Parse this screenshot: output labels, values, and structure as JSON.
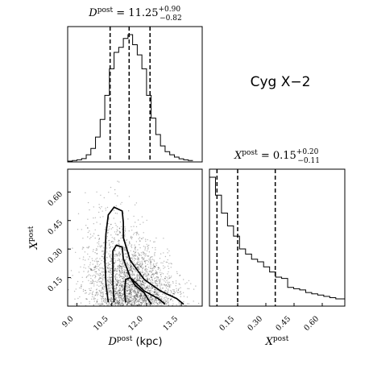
{
  "object_label": "Cyg X−2",
  "titles": {
    "d": {
      "main": "D",
      "sup": "post",
      "eq": " = 11.25",
      "plus": "+0.90",
      "minus": "−0.82"
    },
    "x": {
      "main": "X",
      "sup": "post",
      "eq": " = 0.15",
      "plus": "+0.20",
      "minus": "−0.11"
    }
  },
  "axis_labels": {
    "x_main": "D",
    "x_sup": "post",
    "x_unit": " (kpc)",
    "y_main": "X",
    "y_sup": "post",
    "xr_main": "X",
    "xr_sup": "post"
  },
  "chart_data": [
    {
      "type": "histogram",
      "panel": "D_posterior_marginal",
      "x_range": [
        8.6,
        14.4
      ],
      "quantiles": [
        10.43,
        11.25,
        12.15
      ],
      "bins": [
        8.6,
        8.8,
        9.0,
        9.2,
        9.4,
        9.6,
        9.8,
        10.0,
        10.2,
        10.4,
        10.6,
        10.8,
        11.0,
        11.2,
        11.4,
        11.6,
        11.8,
        12.0,
        12.2,
        12.4,
        12.6,
        12.8,
        13.0,
        13.2,
        13.4,
        13.6,
        13.8,
        14.0
      ],
      "counts": [
        0.0,
        0.005,
        0.01,
        0.02,
        0.05,
        0.1,
        0.19,
        0.33,
        0.52,
        0.73,
        0.86,
        0.9,
        0.97,
        1.0,
        0.92,
        0.84,
        0.73,
        0.52,
        0.34,
        0.21,
        0.12,
        0.075,
        0.05,
        0.032,
        0.018,
        0.01,
        0.005
      ]
    },
    {
      "type": "histogram",
      "panel": "X_posterior_marginal",
      "x_range": [
        0.0,
        0.72
      ],
      "x_ticks": [
        "0.15",
        "0.30",
        "0.45",
        "0.60"
      ],
      "quantiles": [
        0.04,
        0.15,
        0.35
      ],
      "bins": [
        0.0,
        0.032,
        0.064,
        0.096,
        0.128,
        0.16,
        0.192,
        0.224,
        0.256,
        0.288,
        0.32,
        0.352,
        0.384,
        0.416,
        0.448,
        0.48,
        0.512,
        0.544,
        0.576,
        0.608,
        0.64,
        0.672,
        0.72
      ],
      "counts": [
        1.0,
        0.86,
        0.72,
        0.62,
        0.54,
        0.44,
        0.4,
        0.36,
        0.34,
        0.3,
        0.26,
        0.22,
        0.21,
        0.14,
        0.13,
        0.12,
        0.1,
        0.09,
        0.08,
        0.07,
        0.06,
        0.05
      ]
    },
    {
      "type": "scatter",
      "panel": "joint_D_X",
      "x_label": "D post (kpc)",
      "y_label": "X post",
      "x_range": [
        8.6,
        14.4
      ],
      "y_range": [
        0.0,
        0.72
      ],
      "x_ticks": [
        "9.0",
        "10.5",
        "12.0",
        "13.5"
      ],
      "y_ticks": [
        "0.15",
        "0.30",
        "0.45",
        "0.60"
      ],
      "contours": [
        [
          [
            10.35,
            0.02
          ],
          [
            10.25,
            0.12
          ],
          [
            10.2,
            0.25
          ],
          [
            10.25,
            0.38
          ],
          [
            10.35,
            0.48
          ],
          [
            10.6,
            0.52
          ],
          [
            10.95,
            0.5
          ],
          [
            11.0,
            0.44
          ],
          [
            11.0,
            0.36
          ],
          [
            11.3,
            0.24
          ],
          [
            11.9,
            0.14
          ],
          [
            12.6,
            0.08
          ],
          [
            13.3,
            0.04
          ],
          [
            13.6,
            0.01
          ]
        ],
        [
          [
            10.6,
            0.02
          ],
          [
            10.55,
            0.12
          ],
          [
            10.55,
            0.22
          ],
          [
            10.55,
            0.29
          ],
          [
            10.7,
            0.32
          ],
          [
            10.95,
            0.31
          ],
          [
            11.0,
            0.25
          ],
          [
            11.3,
            0.15
          ],
          [
            11.9,
            0.08
          ],
          [
            12.5,
            0.04
          ],
          [
            12.8,
            0.01
          ]
        ],
        [
          [
            11.1,
            0.02
          ],
          [
            11.05,
            0.08
          ],
          [
            11.1,
            0.14
          ],
          [
            11.3,
            0.15
          ],
          [
            11.5,
            0.11
          ],
          [
            11.9,
            0.07
          ],
          [
            12.1,
            0.03
          ],
          [
            12.2,
            0.01
          ]
        ]
      ],
      "density_peak": [
        11.6,
        0.04
      ]
    }
  ]
}
